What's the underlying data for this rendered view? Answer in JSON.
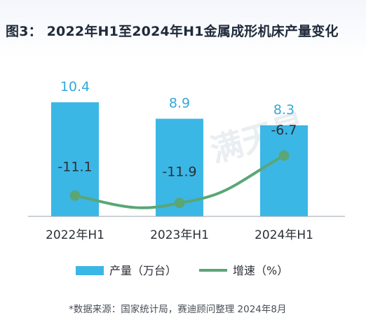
{
  "title": "图3： 2022年H1至2024年H1金属成形机床产量变化",
  "chart_data": {
    "type": "bar",
    "categories": [
      "2022年H1",
      "2023年H1",
      "2024年H1"
    ],
    "series": [
      {
        "name": "产量（万台）",
        "type": "bar",
        "values": [
          10.4,
          8.9,
          8.3
        ],
        "color": "#3bb7e6"
      },
      {
        "name": "增速（%）",
        "type": "line",
        "values": [
          -11.1,
          -11.9,
          -6.7
        ],
        "color": "#5aa676"
      }
    ],
    "bar_value_labels": [
      "10.4",
      "8.9",
      "8.3"
    ],
    "line_value_labels": [
      "-11.1",
      "-11.9",
      "-6.7"
    ],
    "bar_axis_range": [
      0,
      12
    ],
    "line_axis_range": [
      -13,
      0
    ],
    "grid": false,
    "legend_position": "bottom"
  },
  "source": "*数据来源：国家统计局，赛迪顾问整理   2024年8月",
  "watermark_text": "满天星"
}
